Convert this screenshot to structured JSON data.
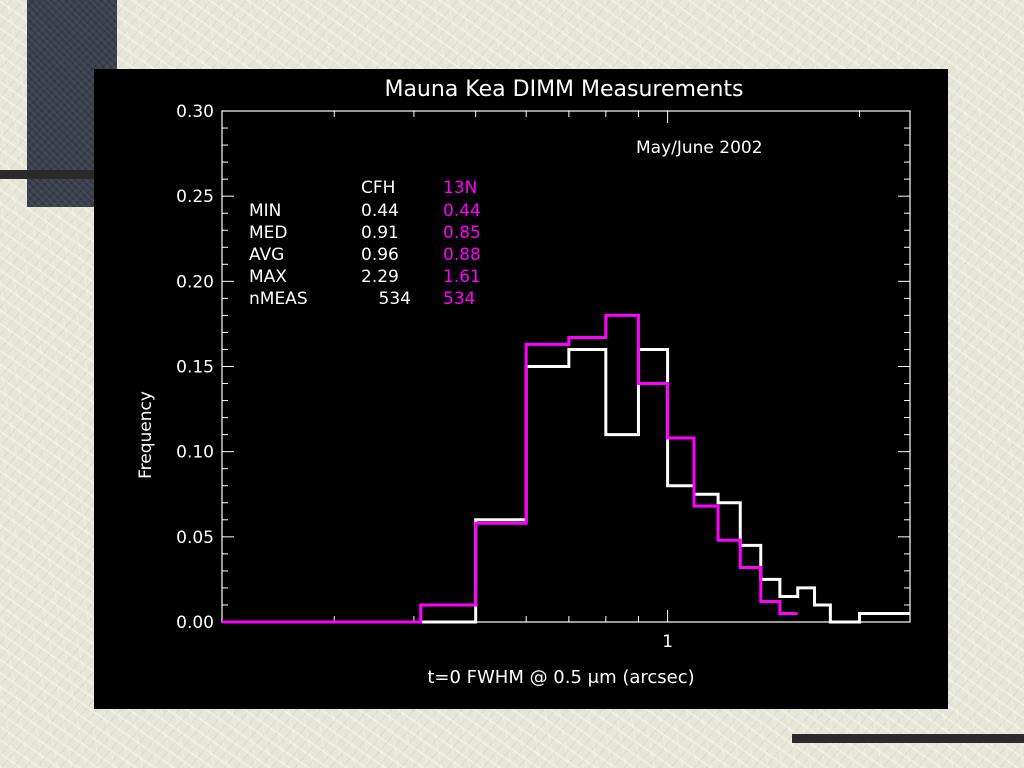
{
  "chart_data": {
    "type": "line",
    "step": true,
    "title": "Mauna Kea DIMM Measurements",
    "xlabel": "t=0 FWHM @ 0.5 μm (arcsec)",
    "ylabel": "Frequency",
    "annotation": "May/June 2002",
    "x_scale": "log",
    "xlim": [
      0.2,
      2.4
    ],
    "ylim": [
      0.0,
      0.3
    ],
    "x_ticks": [
      {
        "value": 1,
        "label": "1"
      }
    ],
    "y_ticks": [
      {
        "value": 0.0,
        "label": "0.00"
      },
      {
        "value": 0.05,
        "label": "0.05"
      },
      {
        "value": 0.1,
        "label": "0.10"
      },
      {
        "value": 0.15,
        "label": "0.15"
      },
      {
        "value": 0.2,
        "label": "0.20"
      },
      {
        "value": 0.25,
        "label": "0.25"
      },
      {
        "value": 0.3,
        "label": "0.30"
      }
    ],
    "grid": false,
    "series": [
      {
        "name": "CFH",
        "color": "#ffffff",
        "bin_edges": [
          0.2,
          0.41,
          0.5,
          0.6,
          0.7,
          0.8,
          0.9,
          1.0,
          1.1,
          1.2,
          1.3,
          1.4,
          1.5,
          1.6,
          1.7,
          1.8,
          1.9,
          2.0,
          2.2,
          2.4
        ],
        "values": [
          0.0,
          0.0,
          0.06,
          0.15,
          0.16,
          0.11,
          0.16,
          0.08,
          0.075,
          0.07,
          0.045,
          0.025,
          0.015,
          0.02,
          0.01,
          0.0,
          0.0,
          0.005,
          0.005
        ]
      },
      {
        "name": "13N",
        "color": "#ff00ff",
        "bin_edges": [
          0.2,
          0.41,
          0.5,
          0.6,
          0.7,
          0.8,
          0.9,
          1.0,
          1.1,
          1.2,
          1.3,
          1.4,
          1.5,
          1.6
        ],
        "values": [
          0.0,
          0.01,
          0.058,
          0.163,
          0.167,
          0.18,
          0.14,
          0.108,
          0.068,
          0.048,
          0.032,
          0.012,
          0.005
        ]
      }
    ],
    "stats_table": {
      "headers": [
        "",
        "CFH",
        "13N"
      ],
      "rows": [
        {
          "label": "MIN",
          "cfh": "0.44",
          "n13": "0.44"
        },
        {
          "label": "MED",
          "cfh": "0.91",
          "n13": "0.85"
        },
        {
          "label": "AVG",
          "cfh": "0.96",
          "n13": "0.88"
        },
        {
          "label": "MAX",
          "cfh": "2.29",
          "n13": "1.61"
        },
        {
          "label": "nMEAS",
          "cfh": "534",
          "n13": "534"
        }
      ]
    }
  }
}
